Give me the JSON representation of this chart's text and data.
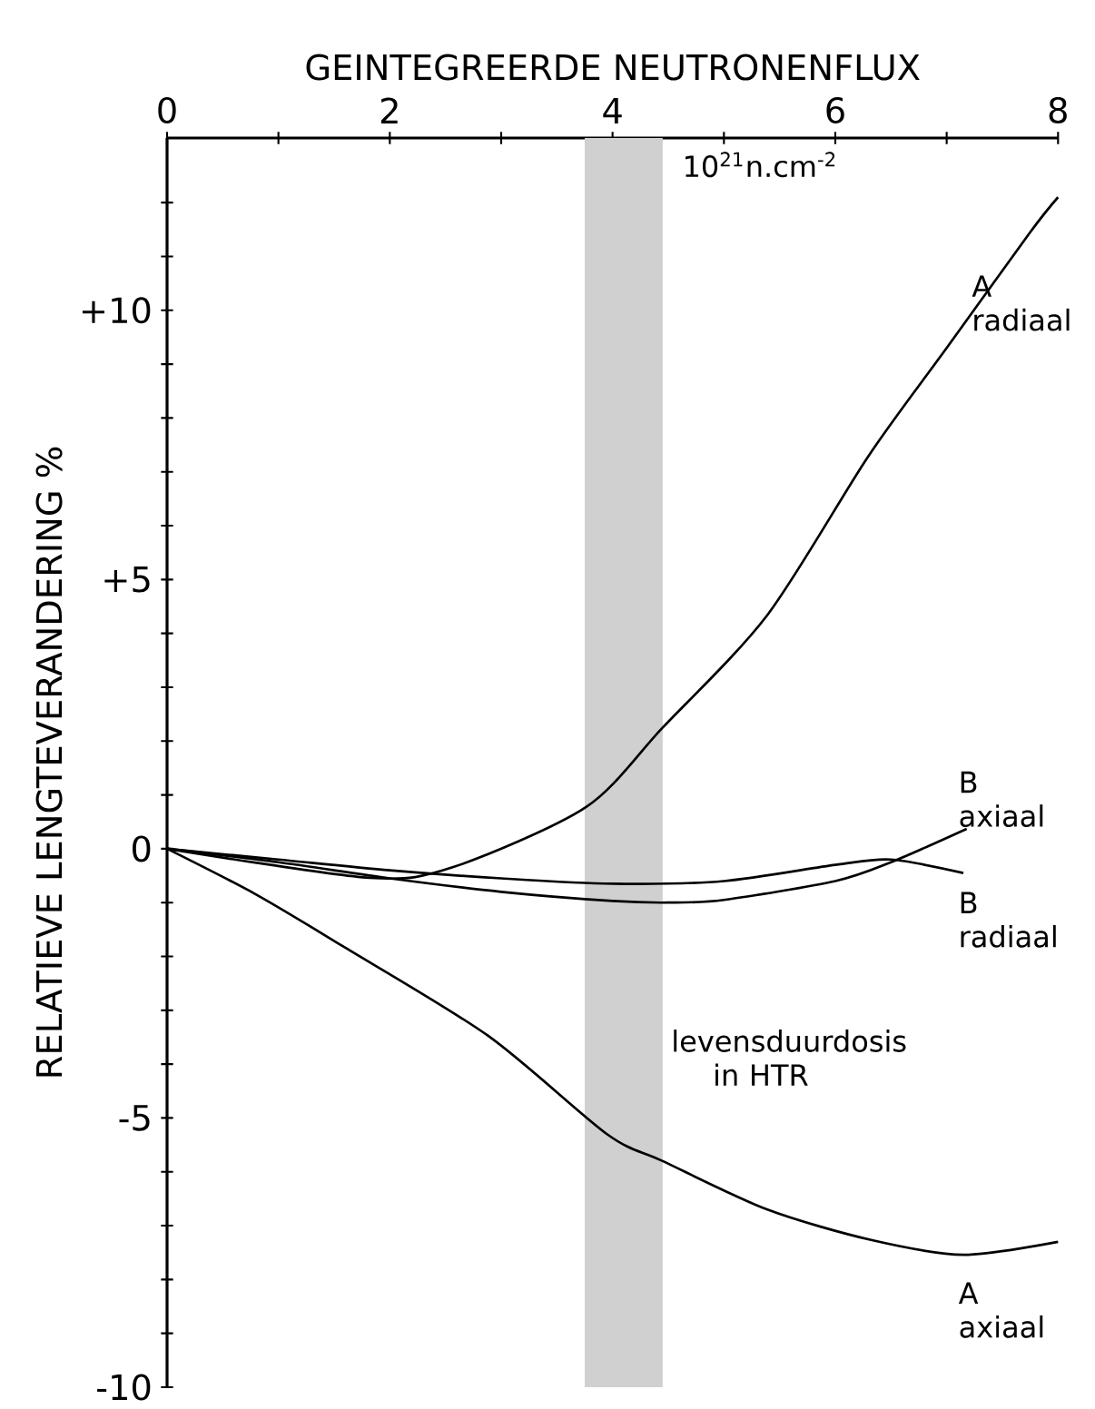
{
  "chart_data": {
    "type": "line",
    "xlabel": "GEINTEGREERDE NEUTRONENFLUX",
    "ylabel": "RELATIEVE  LENGTEVERANDERING  %",
    "annotations": [
      "10$^{21}$n.cm$^{-2}$"
    ],
    "xlim": [
      0,
      8
    ],
    "ylim": [
      -10,
      13.2
    ],
    "xticks": [
      0,
      {
        "value": 1,
        "label": null
      },
      2,
      {
        "value": 3,
        "label": null
      },
      4,
      {
        "value": 5,
        "label": null
      },
      6,
      {
        "value": 7,
        "label": null
      },
      8
    ],
    "yticks": [
      {
        "value": -10,
        "label": "-10"
      },
      {
        "value": -9,
        "label": null
      },
      {
        "value": -8,
        "label": null
      },
      {
        "value": -7,
        "label": null
      },
      {
        "value": -6,
        "label": null
      },
      {
        "value": -5,
        "label": "-5"
      },
      {
        "value": -4,
        "label": null
      },
      {
        "value": -3,
        "label": null
      },
      {
        "value": -2,
        "label": null
      },
      {
        "value": -1,
        "label": null
      },
      0,
      {
        "value": 1,
        "label": null
      },
      {
        "value": 2,
        "label": null
      },
      {
        "value": 3,
        "label": null
      },
      {
        "value": 4,
        "label": null
      },
      {
        "value": 5,
        "label": "+5"
      },
      {
        "value": 6,
        "label": null
      },
      {
        "value": 7,
        "label": null
      },
      {
        "value": 8,
        "label": null
      },
      {
        "value": 9,
        "label": null
      },
      {
        "value": 10,
        "label": "+10"
      },
      {
        "value": 11,
        "label": null
      },
      {
        "value": 12,
        "label": null
      }
    ],
    "grid": false,
    "marker": "none",
    "line_style": "solid",
    "bands": [
      {
        "axis": "x",
        "from": 3.75,
        "to": 4.45,
        "label": "levensduurdosis in HTR",
        "color": "#d0d0d0"
      }
    ],
    "series": [
      {
        "name": "A radiaal",
        "color": "#000000",
        "x": [
          0,
          1.82,
          2.57,
          3.76,
          4.45,
          5.39,
          6.3,
          7,
          7.75,
          8
        ],
        "values": [
          0,
          -0.54,
          -0.34,
          0.77,
          2.25,
          4.34,
          7.3,
          9.3,
          11.45,
          12.1
        ]
      },
      {
        "name": "B axiaal",
        "color": "#000000",
        "x": [
          0,
          1,
          2,
          3,
          4,
          4.5,
          5,
          6,
          6.5,
          7.18
        ],
        "values": [
          0,
          -0.25,
          -0.55,
          -0.8,
          -0.97,
          -1.0,
          -0.95,
          -0.6,
          -0.25,
          0.37
        ]
      },
      {
        "name": "B radiaal",
        "color": "#000000",
        "x": [
          0,
          1,
          2,
          3,
          4,
          5,
          6,
          6.5,
          7.15
        ],
        "values": [
          0,
          -0.2,
          -0.4,
          -0.55,
          -0.65,
          -0.6,
          -0.3,
          -0.2,
          -0.45
        ]
      },
      {
        "name": "A axiaal",
        "color": "#000000",
        "x": [
          0,
          0.8,
          1.57,
          2.88,
          3.95,
          4.45,
          5.39,
          6.33,
          7.15,
          8
        ],
        "values": [
          0,
          -0.85,
          -1.8,
          -3.47,
          -5.3,
          -5.8,
          -6.7,
          -7.27,
          -7.54,
          -7.3
        ]
      }
    ]
  }
}
